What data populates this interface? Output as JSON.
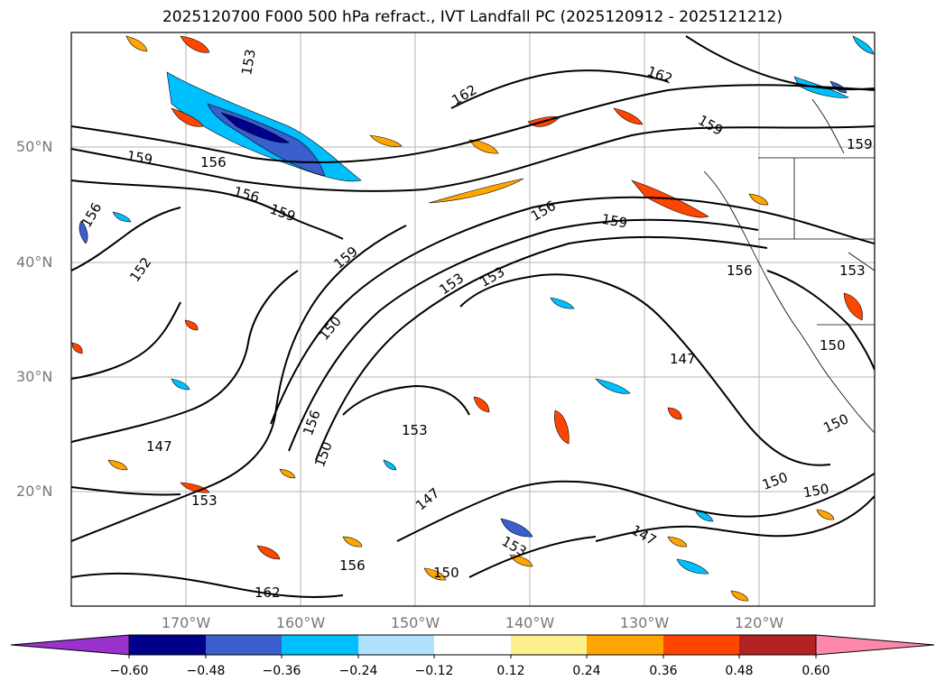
{
  "title": "2025120700 F000 500 hPa refract., IVT Landfall PC (2025120912 - 2025121212)",
  "map": {
    "lat_labels": [
      "50°N",
      "40°N",
      "30°N",
      "20°N"
    ],
    "lon_labels": [
      "170°W",
      "160°W",
      "150°W",
      "140°W",
      "130°W",
      "120°W"
    ],
    "contour_labels": [
      "153",
      "162",
      "162",
      "159",
      "159",
      "159",
      "156",
      "156",
      "159",
      "159",
      "152",
      "156",
      "156",
      "153",
      "153",
      "156",
      "159",
      "150",
      "150",
      "153",
      "153",
      "147",
      "147",
      "150",
      "150",
      "150",
      "147",
      "156",
      "150",
      "153",
      "147",
      "162",
      "156",
      "150",
      "153"
    ]
  },
  "colorbar": {
    "ticks": [
      "−0.60",
      "−0.48",
      "−0.36",
      "−0.24",
      "−0.12",
      "0.12",
      "0.24",
      "0.36",
      "0.48",
      "0.60"
    ],
    "colors": [
      "#9a32cd",
      "#00008b",
      "#3a5fcd",
      "#00bfff",
      "#b0e2ff",
      "#ffffff",
      "#fff08f",
      "#ffa500",
      "#ff4500",
      "#b22222",
      "#ff88aa"
    ]
  }
}
